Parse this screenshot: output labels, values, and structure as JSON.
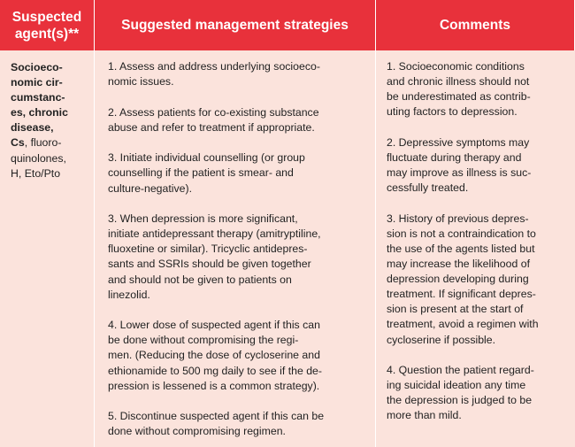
{
  "headers": {
    "agents": "Suspected\nagent(s)**",
    "strategies": "Suggested management strategies",
    "comments": "Comments"
  },
  "agents": {
    "bold_part": "Socioeco-\nnomic cir-\ncumstanc-\nes, chronic\ndisease,\nCs",
    "rest": ", fluoro-\nquinolones,\nH, Eto/Pto"
  },
  "strategies": [
    "1. Assess and address underlying socioeco-\nnomic issues.",
    "2. Assess patients for co-existing substance\nabuse and refer to treatment if appropriate.",
    "3.  Initiate individual counselling (or group\ncounselling if the patient is smear- and\nculture-negative).",
    "3. When depression is more significant,\ninitiate antidepressant therapy (amitryptiline,\nfluoxetine or similar). Tricyclic antidepres-\nsants and SSRIs should be given together\nand should not be given to patients on\nlinezolid.",
    "4. Lower dose of suspected agent if this can\nbe done without compromising the regi-\nmen. (Reducing the dose of cycloserine and\nethionamide to 500 mg daily to see if the de-\npression is lessened is a common strategy).",
    "5. Discontinue suspected agent if this can be\ndone without compromising regimen."
  ],
  "comments": [
    "1. Socioeconomic conditions\nand chronic illness should not\nbe underestimated as contrib-\nuting factors to depression.",
    "2. Depressive symptoms may\nfluctuate during therapy and\nmay improve as illness is suc-\ncessfully treated.",
    "3. History of previous depres-\nsion is not a contraindication to\nthe use of the agents listed but\nmay increase the likelihood of\ndepression developing during\ntreatment. If significant depres-\nsion is present at the start of\ntreatment, avoid a regimen with\ncycloserine if possible.",
    "4. Question the patient regard-\ning suicidal ideation any time\nthe depression is judged to be\nmore than mild."
  ],
  "colors": {
    "header_bg": "#e8313b",
    "body_bg": "#fbe3dc"
  }
}
